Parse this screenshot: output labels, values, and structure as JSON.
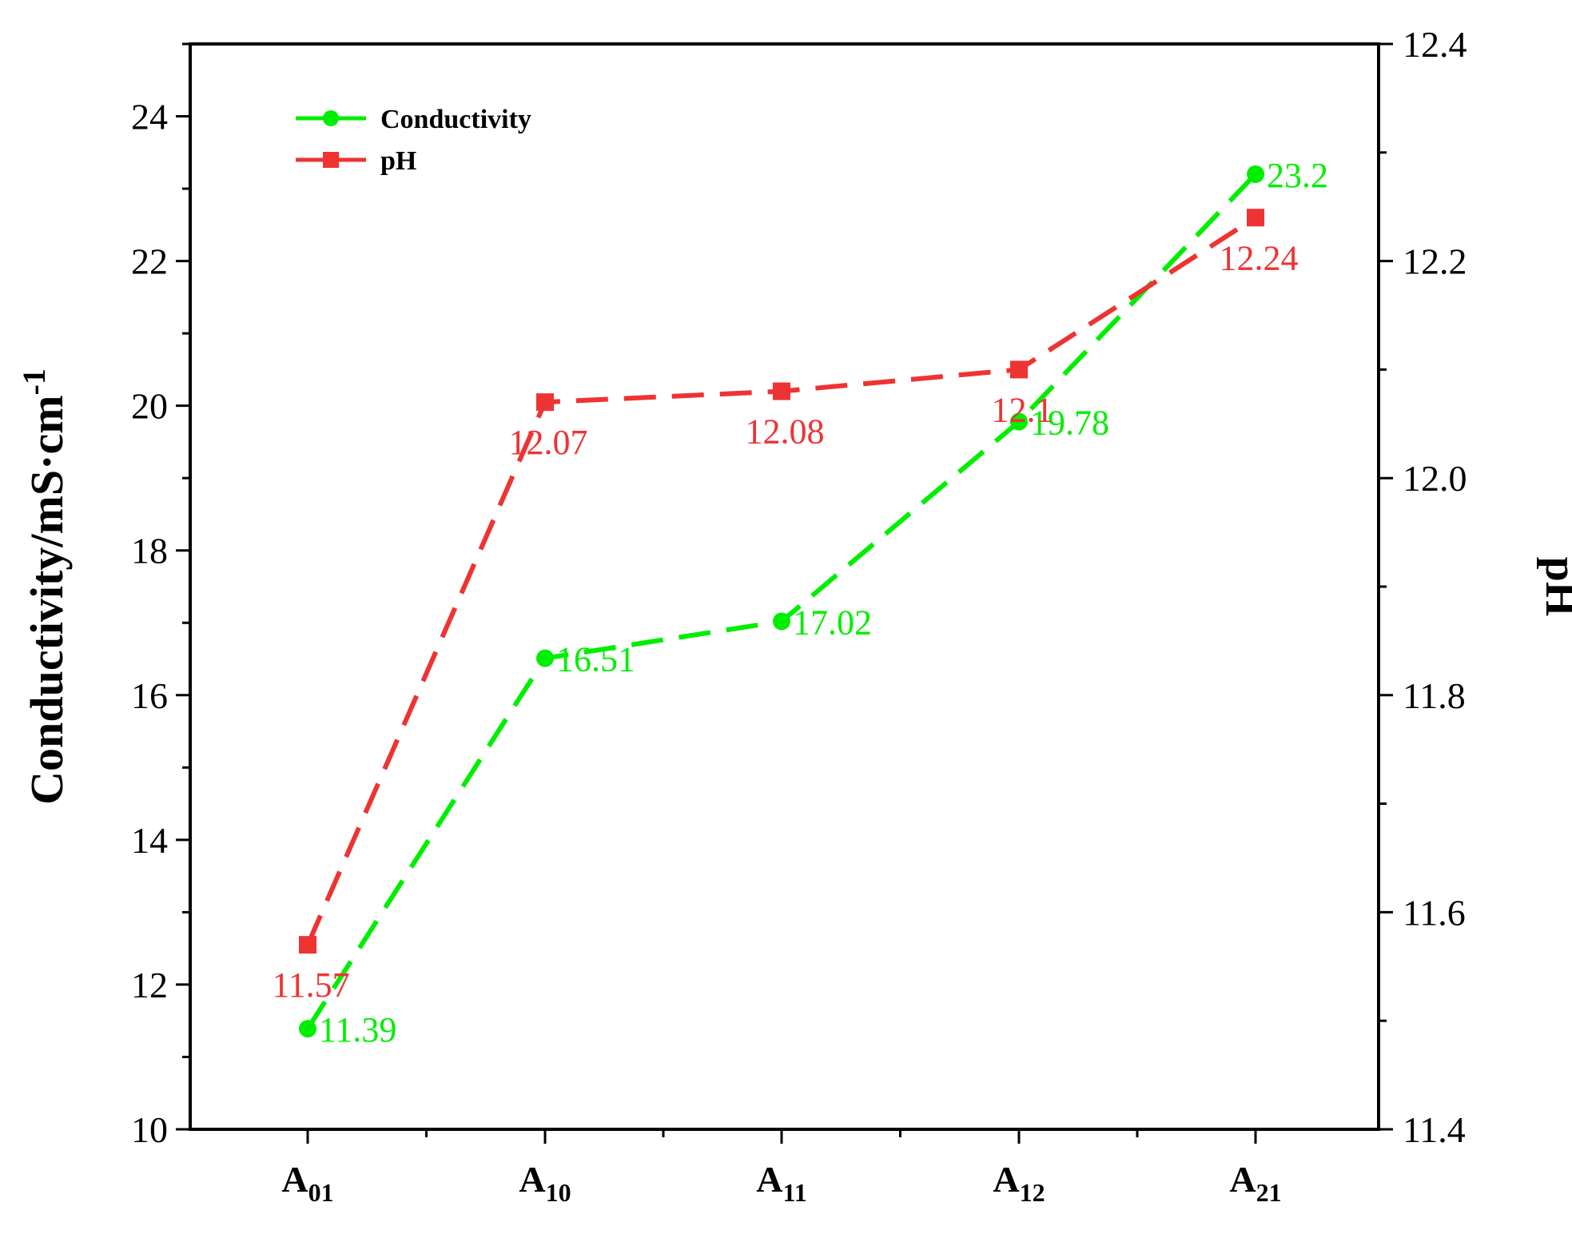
{
  "chart_data": {
    "type": "line",
    "categories": [
      {
        "main": "A",
        "sub": "01"
      },
      {
        "main": "A",
        "sub": "10"
      },
      {
        "main": "A",
        "sub": "11"
      },
      {
        "main": "A",
        "sub": "12"
      },
      {
        "main": "A",
        "sub": "21"
      }
    ],
    "ylabel_left": {
      "text": "Conductivity/mS·cm",
      "sup": "-1"
    },
    "ylabel_right": "pH",
    "ylim_left": [
      10,
      25
    ],
    "ylim_right": [
      11.4,
      12.4
    ],
    "left_ticks": [
      "10",
      "12",
      "14",
      "16",
      "18",
      "20",
      "22",
      "24"
    ],
    "right_ticks": [
      "11.4",
      "11.6",
      "11.8",
      "12.0",
      "12.2",
      "12.4"
    ],
    "grid": false,
    "legend_position": "top-left",
    "series": [
      {
        "name": "Conductivity",
        "axis": "left",
        "color": "#00ee00",
        "marker": "circle",
        "line_style": "dashed",
        "values": [
          11.39,
          16.51,
          17.02,
          19.78,
          23.2
        ],
        "labels": [
          "11.39",
          "16.51",
          "17.02",
          "19.78",
          "23.2"
        ]
      },
      {
        "name": "pH",
        "axis": "right",
        "color": "#ee3333",
        "marker": "square",
        "line_style": "dashed",
        "values": [
          11.57,
          12.07,
          12.08,
          12.1,
          12.24
        ],
        "labels": [
          "11.57",
          "12.07",
          "12.08",
          "12.1",
          "12.24"
        ]
      }
    ]
  }
}
